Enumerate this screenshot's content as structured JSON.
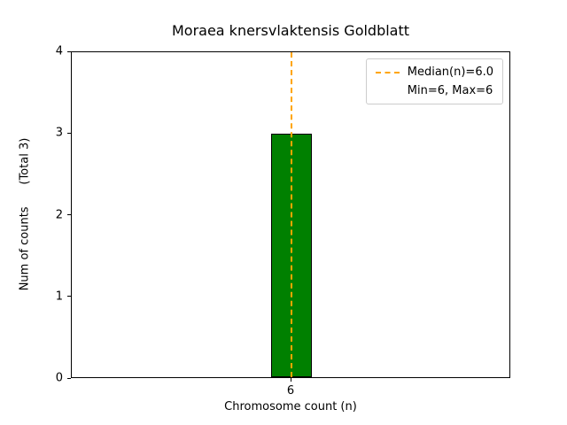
{
  "chart_data": {
    "type": "bar",
    "title": "Moraea knersvlaktensis Goldblatt",
    "xlabel": "Chromosome count (n)",
    "ylabel": "Num of counts      (Total 3)",
    "categories": [
      "6"
    ],
    "values": [
      3
    ],
    "ylim": [
      0,
      4
    ],
    "yticks": [
      0,
      1,
      2,
      3,
      4
    ],
    "bar_color": "#008000",
    "bar_edge_color": "#000000",
    "bar_center_frac": 0.5,
    "bar_width_frac": 0.093,
    "median_line": {
      "value": 6.0,
      "center_frac": 0.5,
      "color": "#FFA500",
      "style": "dashed"
    },
    "legend": {
      "position": "upper right",
      "entries": [
        {
          "label": "Median(n)=6.0",
          "handle": "dashed-orange-line"
        },
        {
          "label": "Min=6, Max=6",
          "handle": "none"
        }
      ]
    },
    "grid": false,
    "total_counts": 3
  }
}
